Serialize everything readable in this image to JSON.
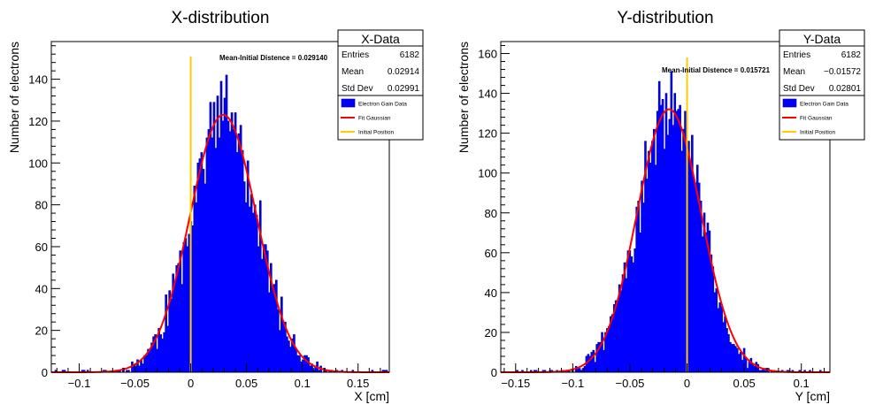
{
  "chart_data": [
    {
      "type": "bar",
      "title": "X-distribution",
      "xlabel": "X [cm]",
      "ylabel": "Number of electrons",
      "xlim": [
        -0.125,
        0.178
      ],
      "ylim": [
        0,
        158
      ],
      "x_ticks": [
        -0.1,
        -0.05,
        0,
        0.05,
        0.1,
        0.15
      ],
      "x_tick_labels": [
        "−0.1",
        "−0.05",
        "0",
        "0.05",
        "0.1",
        "0.15"
      ],
      "y_ticks": [
        0,
        20,
        40,
        60,
        80,
        100,
        120,
        140
      ],
      "y_tick_labels": [
        "0",
        "20",
        "40",
        "60",
        "80",
        "100",
        "120",
        "140"
      ],
      "grid": false,
      "mean": 0.02914,
      "sigma": 0.02991,
      "fit_peak": 123,
      "initial_position": 0,
      "initial_line_top": 151,
      "annotation": "Mean-Initial Distence = 0.029140",
      "stats": {
        "title": "X-Data",
        "rows": [
          {
            "label": "Entries",
            "value": "6182"
          },
          {
            "label": "Mean",
            "value": "0.02914"
          },
          {
            "label": "Std Dev",
            "value": "0.02991"
          }
        ]
      },
      "legend": {
        "position": "top-right",
        "entries": [
          {
            "label": "Electron Gain Data",
            "color": "#0000ff",
            "kind": "box"
          },
          {
            "label": "Fit Gaussian",
            "color": "#ff0000",
            "kind": "line"
          },
          {
            "label": "Initial Position",
            "color": "#ffcc00",
            "kind": "line"
          }
        ]
      }
    },
    {
      "type": "bar",
      "title": "Y-distribution",
      "xlabel": "Y [cm]",
      "ylabel": "Number of electrons",
      "xlim": [
        -0.163,
        0.125
      ],
      "ylim": [
        0,
        166
      ],
      "x_ticks": [
        -0.15,
        -0.1,
        -0.05,
        0,
        0.05,
        0.1
      ],
      "x_tick_labels": [
        "−0.15",
        "−0.1",
        "−0.05",
        "0",
        "0.05",
        "0.1"
      ],
      "y_ticks": [
        0,
        20,
        40,
        60,
        80,
        100,
        120,
        140,
        160
      ],
      "y_tick_labels": [
        "0",
        "20",
        "40",
        "60",
        "80",
        "100",
        "120",
        "140",
        "160"
      ],
      "grid": false,
      "mean": -0.01572,
      "sigma": 0.02801,
      "fit_peak": 132,
      "initial_position": 0,
      "initial_line_top": 158,
      "annotation": "Mean-Initial Distence = 0.015721",
      "stats": {
        "title": "Y-Data",
        "rows": [
          {
            "label": "Entries",
            "value": "6182"
          },
          {
            "label": "Mean",
            "value": "−0.01572"
          },
          {
            "label": "Std Dev",
            "value": "0.02801"
          }
        ]
      },
      "legend": {
        "position": "top-right",
        "entries": [
          {
            "label": "Electron Gain Data",
            "color": "#0000ff",
            "kind": "box"
          },
          {
            "label": "Fit Gaussian",
            "color": "#ff0000",
            "kind": "line"
          },
          {
            "label": "Initial Position",
            "color": "#ffcc00",
            "kind": "line"
          }
        ]
      }
    }
  ]
}
